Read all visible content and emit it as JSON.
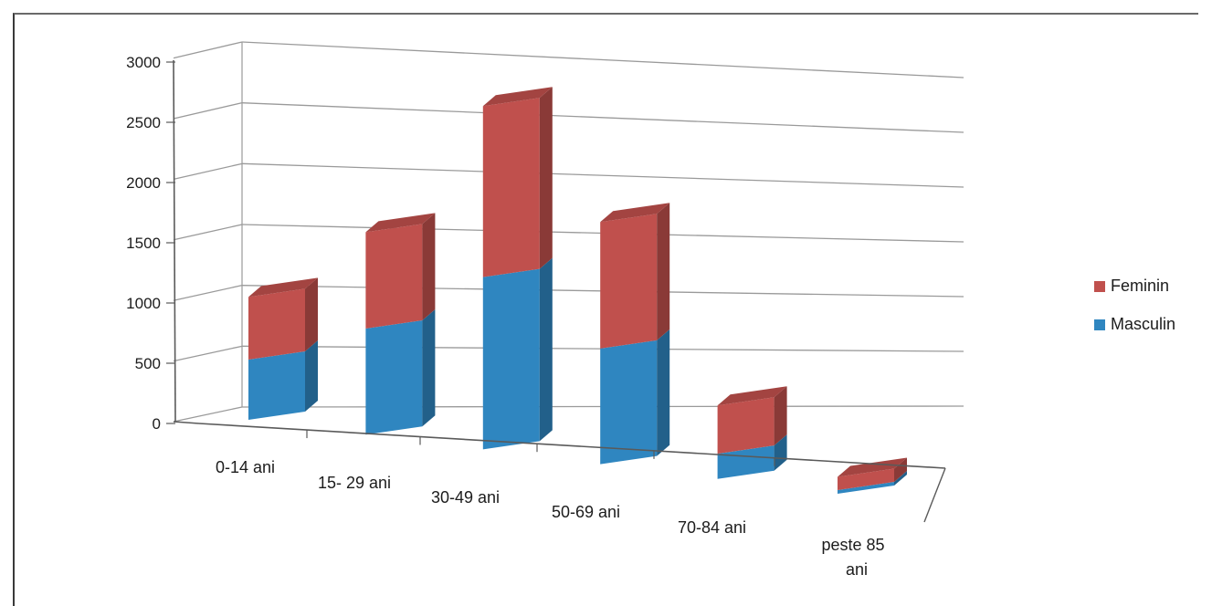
{
  "chart_data": {
    "type": "bar",
    "stacked": true,
    "view": "3d-perspective",
    "categories": [
      "0-14 ani",
      "15- 29 ani",
      "30-49 ani",
      "50-69 ani",
      "70-84 ani",
      "peste 85 ani"
    ],
    "series": [
      {
        "name": "Masculin",
        "values": [
          500,
          880,
          1430,
          960,
          210,
          30
        ],
        "color": "#2f86c0"
      },
      {
        "name": "Feminin",
        "values": [
          520,
          800,
          1420,
          1050,
          400,
          110
        ],
        "color": "#c0504d"
      }
    ],
    "y_ticks": [
      "0",
      "500",
      "1000",
      "1500",
      "2000",
      "2500",
      "3000"
    ],
    "ylim": [
      0,
      3000
    ],
    "grid": true,
    "legend_position": "right",
    "title": "",
    "xlabel": "",
    "ylabel": ""
  }
}
